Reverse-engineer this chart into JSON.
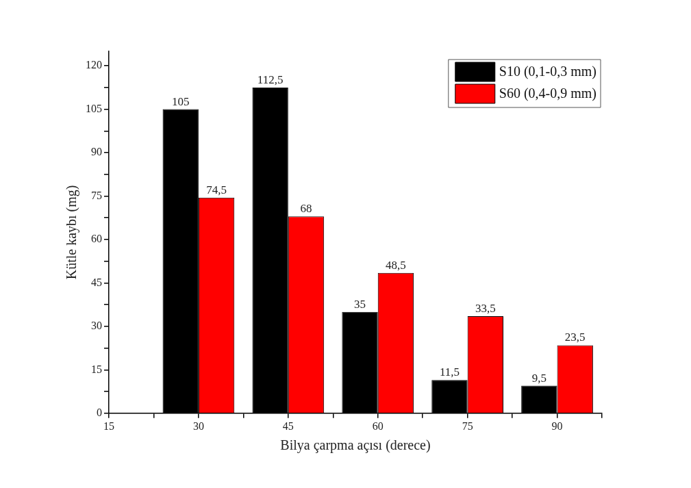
{
  "chart_data": {
    "type": "bar",
    "xlabel": "Bilya çarpma açısı (derece)",
    "ylabel": "Kütle kaybı (mg)",
    "x": [
      30,
      45,
      60,
      75,
      90
    ],
    "series": [
      {
        "name": "S10 (0,1-0,3 mm)",
        "color": "#000000",
        "values": [
          105,
          112.5,
          35,
          11.5,
          9.5
        ],
        "value_labels": [
          "105",
          "112,5",
          "35",
          "11,5",
          "9,5"
        ]
      },
      {
        "name": "S60 (0,4-0,9 mm)",
        "color": "#ff0000",
        "values": [
          74.5,
          68,
          48.5,
          33.5,
          23.5
        ],
        "value_labels": [
          "74,5",
          "68",
          "48,5",
          "33,5",
          "23,5"
        ]
      }
    ],
    "xlim": [
      15,
      97.5
    ],
    "xticks": [
      15,
      {
        "value": 22.5,
        "label": null
      },
      30,
      {
        "value": 37.5,
        "label": null
      },
      45,
      {
        "value": 52.5,
        "label": null
      },
      60,
      {
        "value": 67.5,
        "label": null
      },
      75,
      {
        "value": 82.5,
        "label": null
      },
      90,
      {
        "value": 97.5,
        "label": null
      }
    ],
    "ylim": [
      0,
      125
    ],
    "yticks": [
      0,
      {
        "value": 7.5,
        "label": null
      },
      15,
      {
        "value": 22.5,
        "label": null
      },
      30,
      {
        "value": 37.5,
        "label": null
      },
      45,
      {
        "value": 52.5,
        "label": null
      },
      60,
      {
        "value": 67.5,
        "label": null
      },
      75,
      {
        "value": 82.5,
        "label": null
      },
      90,
      {
        "value": 97.5,
        "label": null
      },
      105,
      {
        "value": 112.5,
        "label": null
      },
      120
    ],
    "legend": "top right"
  }
}
